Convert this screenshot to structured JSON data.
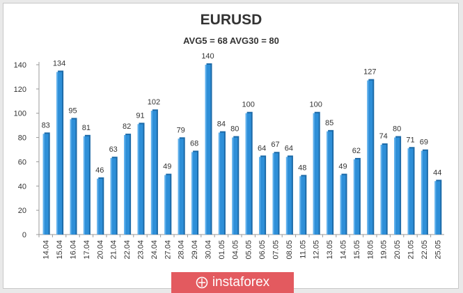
{
  "chart_data": {
    "type": "bar",
    "title": "EURUSD",
    "subtitle": "AVG5 = 68 AVG30 = 80",
    "categories": [
      "14.04",
      "15.04",
      "16.04",
      "17.04",
      "20.04",
      "21.04",
      "22.04",
      "23.04",
      "24.04",
      "27.04",
      "28.04",
      "29.04",
      "30.04",
      "01.05",
      "04.05",
      "05.05",
      "06.05",
      "07.05",
      "08.05",
      "11.05",
      "12.05",
      "13.05",
      "14.05",
      "15.05",
      "18.05",
      "19.05",
      "20.05",
      "21.05",
      "22.05",
      "25.05"
    ],
    "values": [
      83,
      134,
      95,
      81,
      46,
      63,
      82,
      91,
      102,
      49,
      79,
      68,
      140,
      84,
      80,
      100,
      64,
      67,
      64,
      48,
      100,
      85,
      49,
      62,
      127,
      74,
      80,
      71,
      69,
      44
    ],
    "ylim": [
      0,
      140
    ],
    "yticks": [
      0,
      20,
      40,
      60,
      80,
      100,
      120,
      140
    ],
    "grid": false,
    "legend": "none",
    "colors": {
      "bar": "#2e8fd8",
      "bar_dark": "#1c6aa8",
      "bar_light": "#5fb0ec",
      "axis": "#999999"
    }
  },
  "brand": {
    "label": "instaforex",
    "icon": "instaforex-logo-icon",
    "color": "#e35a5f"
  }
}
